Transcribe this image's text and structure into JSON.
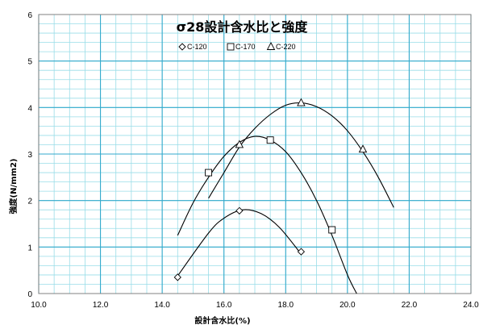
{
  "chart_data": {
    "type": "scatter",
    "title": "σ28設計含水比と強度",
    "xlabel": "設計含水比(%)",
    "ylabel": "強度(N/mm2)",
    "xlim": [
      10.0,
      24.0
    ],
    "ylim": [
      0,
      6
    ],
    "x_ticks": [
      "10.0",
      "12.0",
      "14.0",
      "16.0",
      "18.0",
      "20.0",
      "22.0",
      "24.0"
    ],
    "y_ticks": [
      "0",
      "1",
      "2",
      "3",
      "4",
      "5",
      "6"
    ],
    "grid": true,
    "legend_position": "top-center",
    "series": [
      {
        "name": "C-120",
        "marker": "diamond",
        "points": [
          [
            14.5,
            0.35
          ],
          [
            16.5,
            1.78
          ],
          [
            18.5,
            0.9
          ]
        ],
        "trend": {
          "x_range": [
            14.5,
            18.5
          ],
          "points": [
            [
              14.5,
              0.38
            ],
            [
              15.5,
              1.3
            ],
            [
              16.0,
              1.62
            ],
            [
              16.6,
              1.8
            ],
            [
              17.2,
              1.72
            ],
            [
              17.8,
              1.42
            ],
            [
              18.5,
              0.85
            ]
          ]
        }
      },
      {
        "name": "C-170",
        "marker": "square",
        "points": [
          [
            15.5,
            2.6
          ],
          [
            17.5,
            3.3
          ],
          [
            19.5,
            1.37
          ]
        ],
        "trend": {
          "x_range": [
            14.5,
            20.3
          ],
          "points": [
            [
              14.5,
              1.25
            ],
            [
              15.0,
              1.95
            ],
            [
              15.5,
              2.5
            ],
            [
              16.0,
              2.95
            ],
            [
              16.5,
              3.25
            ],
            [
              17.0,
              3.38
            ],
            [
              17.5,
              3.3
            ],
            [
              18.0,
              3.05
            ],
            [
              18.5,
              2.6
            ],
            [
              19.0,
              2.0
            ],
            [
              19.5,
              1.25
            ],
            [
              20.0,
              0.4
            ],
            [
              20.3,
              0.0
            ]
          ]
        }
      },
      {
        "name": "C-220",
        "marker": "triangle",
        "points": [
          [
            16.5,
            3.2
          ],
          [
            18.5,
            4.1
          ],
          [
            20.5,
            3.1
          ]
        ],
        "trend": {
          "x_range": [
            15.5,
            21.5
          ],
          "points": [
            [
              15.5,
              2.05
            ],
            [
              16.0,
              2.6
            ],
            [
              16.5,
              3.15
            ],
            [
              17.0,
              3.55
            ],
            [
              17.5,
              3.85
            ],
            [
              18.0,
              4.05
            ],
            [
              18.5,
              4.1
            ],
            [
              19.0,
              4.02
            ],
            [
              19.5,
              3.82
            ],
            [
              20.0,
              3.5
            ],
            [
              20.5,
              3.05
            ],
            [
              21.0,
              2.5
            ],
            [
              21.5,
              1.85
            ]
          ]
        }
      }
    ]
  },
  "colors": {
    "major_grid": "#33aacc",
    "minor_grid": "#99dde8",
    "series_line": "#000000",
    "background": "#ffffff"
  }
}
